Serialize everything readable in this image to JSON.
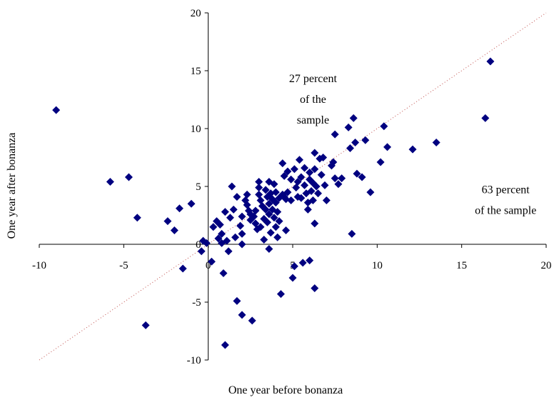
{
  "chart_data": {
    "type": "scatter",
    "xlabel": "One year before bonanza",
    "ylabel": "One year after bonanza",
    "xlim": [
      -10,
      20
    ],
    "ylim": [
      -10,
      20
    ],
    "xticks": [
      "-10",
      "-5",
      "0",
      "5",
      "10",
      "15",
      "20"
    ],
    "yticks": [
      "-10",
      "-5",
      "0",
      "5",
      "10",
      "15",
      "20"
    ],
    "grid": false,
    "legend": "none",
    "marker": "diamond",
    "marker_color": "#000080",
    "reference_line": {
      "style": "dotted",
      "color": "#c0504d",
      "from": [
        -10,
        -10
      ],
      "to": [
        20,
        20
      ]
    },
    "annotations": [
      {
        "lines": [
          "27 percent",
          "of the",
          "sample"
        ],
        "x": 6.2,
        "y": 14
      },
      {
        "lines": [
          "63 percent",
          "of the sample"
        ],
        "x": 17.6,
        "y": 4.4
      }
    ],
    "points": [
      [
        -9.0,
        11.6
      ],
      [
        -5.8,
        5.4
      ],
      [
        -4.7,
        5.8
      ],
      [
        -4.2,
        2.3
      ],
      [
        -3.7,
        -7.0
      ],
      [
        -2.4,
        2.0
      ],
      [
        -2.0,
        1.2
      ],
      [
        -1.7,
        3.1
      ],
      [
        -1.5,
        -2.1
      ],
      [
        -1.0,
        3.5
      ],
      [
        -0.4,
        -0.6
      ],
      [
        -0.3,
        0.3
      ],
      [
        -0.1,
        0.1
      ],
      [
        0.2,
        -1.5
      ],
      [
        0.3,
        1.5
      ],
      [
        0.5,
        2.0
      ],
      [
        0.6,
        0.5
      ],
      [
        0.7,
        1.7
      ],
      [
        0.8,
        0.9
      ],
      [
        0.8,
        0.1
      ],
      [
        0.9,
        -2.5
      ],
      [
        1.0,
        2.8
      ],
      [
        1.0,
        -8.7
      ],
      [
        1.1,
        0.3
      ],
      [
        1.2,
        -0.6
      ],
      [
        1.3,
        2.3
      ],
      [
        1.4,
        5.0
      ],
      [
        1.5,
        3.0
      ],
      [
        1.6,
        0.6
      ],
      [
        1.7,
        4.1
      ],
      [
        1.7,
        -4.9
      ],
      [
        1.9,
        1.6
      ],
      [
        2.0,
        2.4
      ],
      [
        2.0,
        0.9
      ],
      [
        2.0,
        0.0
      ],
      [
        2.0,
        -6.1
      ],
      [
        2.2,
        3.8
      ],
      [
        2.3,
        3.4
      ],
      [
        2.3,
        4.3
      ],
      [
        2.4,
        2.9
      ],
      [
        2.5,
        2.6
      ],
      [
        2.5,
        2.1
      ],
      [
        2.6,
        -6.6
      ],
      [
        2.7,
        2.4
      ],
      [
        2.8,
        1.8
      ],
      [
        2.8,
        2.9
      ],
      [
        2.9,
        1.3
      ],
      [
        3.0,
        5.4
      ],
      [
        3.0,
        4.9
      ],
      [
        3.0,
        4.3
      ],
      [
        3.1,
        3.8
      ],
      [
        3.1,
        1.5
      ],
      [
        3.2,
        3.3
      ],
      [
        3.3,
        2.2
      ],
      [
        3.3,
        0.4
      ],
      [
        3.4,
        4.7
      ],
      [
        3.4,
        3.0
      ],
      [
        3.5,
        4.1
      ],
      [
        3.5,
        1.9
      ],
      [
        3.6,
        5.4
      ],
      [
        3.6,
        3.5
      ],
      [
        3.6,
        2.6
      ],
      [
        3.6,
        -0.4
      ],
      [
        3.7,
        4.4
      ],
      [
        3.7,
        1.0
      ],
      [
        3.8,
        3.9
      ],
      [
        3.8,
        3.0
      ],
      [
        3.9,
        5.2
      ],
      [
        3.9,
        2.3
      ],
      [
        4.0,
        4.5
      ],
      [
        4.0,
        3.6
      ],
      [
        4.0,
        1.5
      ],
      [
        4.1,
        2.8
      ],
      [
        4.1,
        0.6
      ],
      [
        4.2,
        4.0
      ],
      [
        4.2,
        2.0
      ],
      [
        4.3,
        -4.3
      ],
      [
        4.4,
        7.0
      ],
      [
        4.4,
        4.3
      ],
      [
        4.5,
        5.9
      ],
      [
        4.5,
        4.1
      ],
      [
        4.6,
        3.9
      ],
      [
        4.6,
        1.2
      ],
      [
        4.7,
        6.3
      ],
      [
        4.7,
        4.5
      ],
      [
        4.9,
        3.8
      ],
      [
        4.9,
        5.6
      ],
      [
        5.0,
        -2.9
      ],
      [
        5.1,
        6.5
      ],
      [
        5.1,
        -1.9
      ],
      [
        5.2,
        4.9
      ],
      [
        5.3,
        5.4
      ],
      [
        5.3,
        4.1
      ],
      [
        5.4,
        7.3
      ],
      [
        5.5,
        5.8
      ],
      [
        5.5,
        4.0
      ],
      [
        5.6,
        -1.6
      ],
      [
        5.7,
        6.6
      ],
      [
        5.7,
        5.1
      ],
      [
        5.8,
        4.4
      ],
      [
        5.9,
        3.6
      ],
      [
        5.9,
        3.0
      ],
      [
        6.0,
        6.2
      ],
      [
        6.0,
        5.6
      ],
      [
        6.0,
        -1.4
      ],
      [
        6.1,
        4.6
      ],
      [
        6.2,
        5.3
      ],
      [
        6.2,
        3.8
      ],
      [
        6.3,
        7.9
      ],
      [
        6.3,
        6.5
      ],
      [
        6.3,
        1.8
      ],
      [
        6.3,
        -3.8
      ],
      [
        6.4,
        5.0
      ],
      [
        6.5,
        4.4
      ],
      [
        6.6,
        7.4
      ],
      [
        6.7,
        6.0
      ],
      [
        6.8,
        7.5
      ],
      [
        6.9,
        5.1
      ],
      [
        7.0,
        3.8
      ],
      [
        7.3,
        6.8
      ],
      [
        7.4,
        7.1
      ],
      [
        7.5,
        9.5
      ],
      [
        7.5,
        5.7
      ],
      [
        7.7,
        5.2
      ],
      [
        7.9,
        5.7
      ],
      [
        8.3,
        10.1
      ],
      [
        8.4,
        8.3
      ],
      [
        8.5,
        0.9
      ],
      [
        8.6,
        10.9
      ],
      [
        8.7,
        8.8
      ],
      [
        8.8,
        6.1
      ],
      [
        9.1,
        5.8
      ],
      [
        9.3,
        9.0
      ],
      [
        9.6,
        4.5
      ],
      [
        10.2,
        7.1
      ],
      [
        10.4,
        10.2
      ],
      [
        10.6,
        8.4
      ],
      [
        12.1,
        8.2
      ],
      [
        13.5,
        8.8
      ],
      [
        16.4,
        10.9
      ],
      [
        16.7,
        15.8
      ]
    ]
  }
}
